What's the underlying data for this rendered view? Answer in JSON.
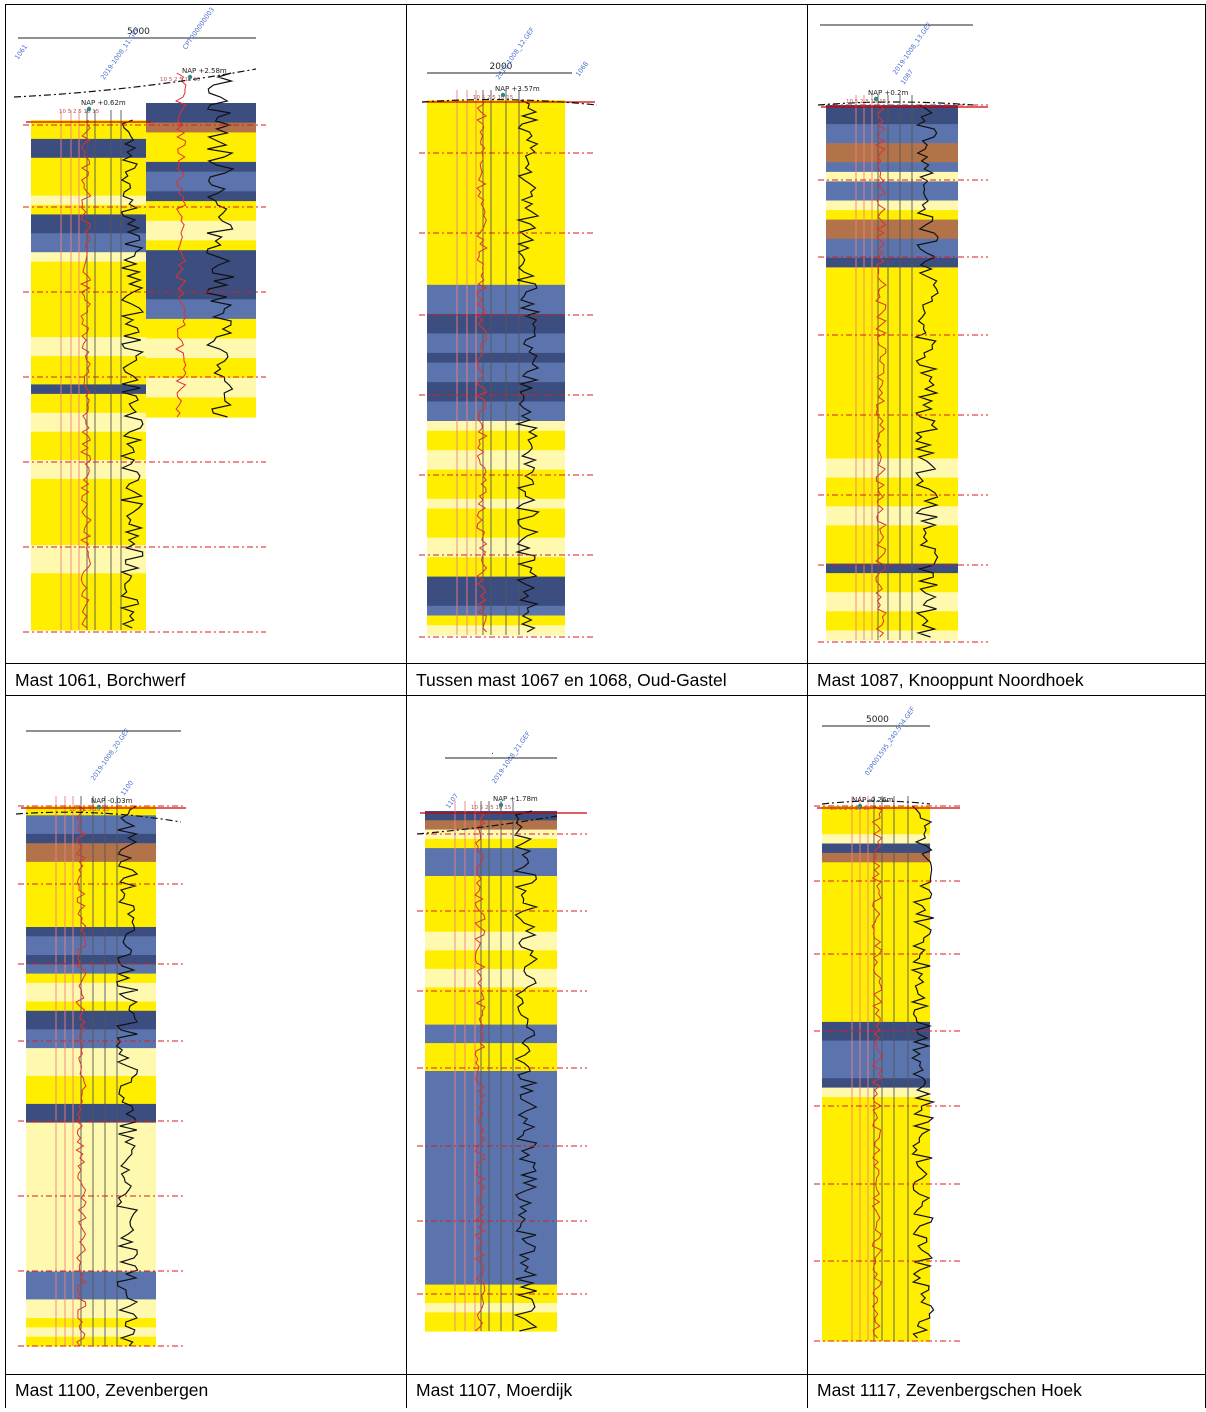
{
  "colors": {
    "sand": "#ffee00",
    "silty_sand": "#fff9b0",
    "clay": "#5b74ad",
    "dark_clay": "#3c4e80",
    "peat": "#b3734a",
    "cpt_red": "#e03030",
    "grid_red": "#d81e1e",
    "level_line": "#cc0000",
    "label_blue": "#4a6fd0"
  },
  "panels": [
    {
      "caption": "Mast 1061, Borchwerf",
      "scale_label": "5000",
      "file_labels": [
        "1061",
        "2019-1008_11.GEF",
        "CPT000000003"
      ],
      "nap_labels": [
        "NAP +0.62m",
        "NAP +2.58m"
      ],
      "tick_labels": [
        "10",
        "5",
        "2",
        "5",
        "10",
        "15"
      ]
    },
    {
      "caption": "Tussen mast 1067 en 1068, Oud-Gastel",
      "scale_label": "2000",
      "file_labels": [
        "2019-1008_12.GEF",
        "1068"
      ],
      "nap_labels": [
        "NAP +3.57m"
      ],
      "tick_labels": [
        "10",
        "5",
        "2",
        "5",
        "10",
        "15"
      ]
    },
    {
      "caption": "Mast 1087, Knooppunt Noordhoek",
      "scale_label": "",
      "file_labels": [
        "2019-1008_13.GEF",
        "1087"
      ],
      "nap_labels": [
        "NAP +0.2m"
      ],
      "tick_labels": [
        "10",
        "5",
        "2",
        "5",
        "10",
        "15"
      ]
    },
    {
      "caption": "Mast 1100, Zevenbergen",
      "scale_label": "",
      "file_labels": [
        "2019-1008_20.GEF",
        "1100"
      ],
      "nap_labels": [
        "NAP -0.03m"
      ],
      "tick_labels": [
        "10",
        "5",
        "2",
        "5",
        "10",
        "15"
      ]
    },
    {
      "caption": "Mast 1107, Moerdijk",
      "scale_label": ".",
      "file_labels": [
        "1107",
        "2019-1008_21.GEF"
      ],
      "nap_labels": [
        "NAP +1.78m"
      ],
      "tick_labels": [
        "10",
        "5",
        "2",
        "5",
        "10",
        "15"
      ]
    },
    {
      "caption": "Mast 1117, Zevenbergschen Hoek",
      "scale_label": "5000",
      "file_labels": [
        "02P001595_240.504.GEF"
      ],
      "nap_labels": [
        "NAP -0.26m"
      ],
      "tick_labels": [
        "10",
        "5",
        "2",
        "5",
        "10",
        "15"
      ]
    }
  ]
}
